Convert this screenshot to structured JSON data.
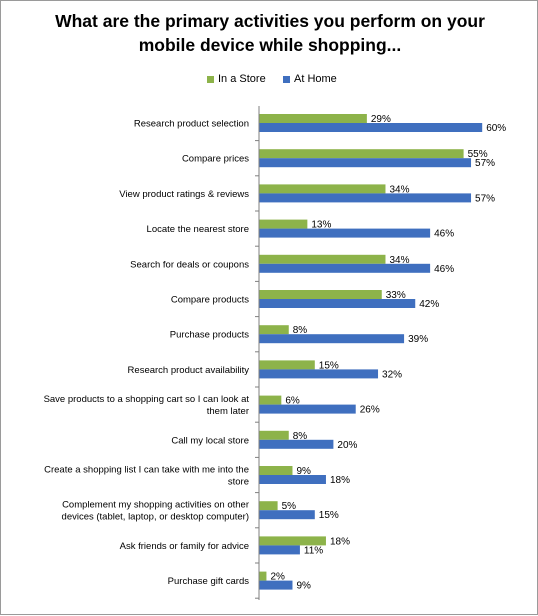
{
  "chart_data": {
    "type": "bar",
    "orientation": "horizontal",
    "title_lines": [
      "What are the primary activities you perform on your",
      "mobile device while shopping..."
    ],
    "legend_position": "top",
    "grid": false,
    "xlim": [
      0,
      70
    ],
    "categories": [
      [
        "Research product selection"
      ],
      [
        "Compare prices"
      ],
      [
        "View product ratings & reviews"
      ],
      [
        "Locate the nearest store"
      ],
      [
        "Search for deals or coupons"
      ],
      [
        "Compare products"
      ],
      [
        "Purchase products"
      ],
      [
        "Research product availability"
      ],
      [
        "Save products to a shopping cart so I can look at",
        "them later"
      ],
      [
        "Call my local store"
      ],
      [
        "Create a shopping list I can take with me into the",
        "store"
      ],
      [
        "Complement my shopping activities on other",
        "devices (tablet, laptop, or desktop computer)"
      ],
      [
        "Ask friends or family for advice"
      ],
      [
        "Purchase gift cards"
      ]
    ],
    "series": [
      {
        "name": "In a Store",
        "color": "#8DB34A",
        "values": [
          29,
          55,
          34,
          13,
          34,
          33,
          8,
          15,
          6,
          8,
          9,
          5,
          18,
          2
        ],
        "labels": [
          "29%",
          "55%",
          "34%",
          "13%",
          "34%",
          "33%",
          "8%",
          "15%",
          "6%",
          "8%",
          "9%",
          "5%",
          "18%",
          "2%"
        ]
      },
      {
        "name": "At Home",
        "color": "#3F6FBF",
        "values": [
          60,
          57,
          57,
          46,
          46,
          42,
          39,
          32,
          26,
          20,
          18,
          15,
          11,
          9
        ],
        "labels": [
          "60%",
          "57%",
          "57%",
          "46%",
          "46%",
          "42%",
          "39%",
          "32%",
          "26%",
          "20%",
          "18%",
          "15%",
          "11%",
          "9%"
        ]
      }
    ]
  }
}
